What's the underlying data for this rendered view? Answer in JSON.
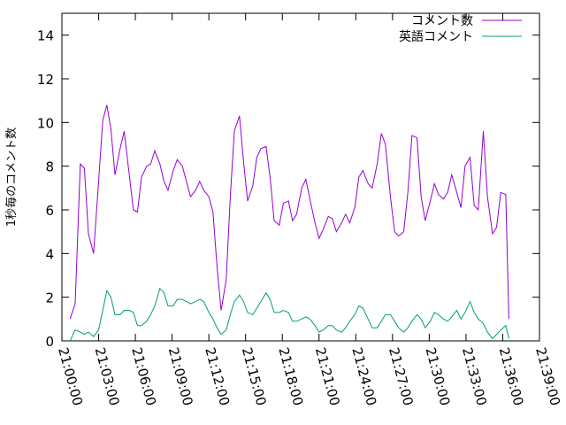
{
  "chart_data": {
    "type": "line",
    "ylabel": "1秒毎のコメント数",
    "xlabel": "",
    "ylim": [
      0,
      15
    ],
    "yticks": [
      0,
      2,
      4,
      6,
      8,
      10,
      12,
      14
    ],
    "xticks": [
      "21:00:00",
      "21:03:00",
      "21:06:00",
      "21:09:00",
      "21:12:00",
      "21:15:00",
      "21:18:00",
      "21:21:00",
      "21:24:00",
      "21:27:00",
      "21:30:00",
      "21:33:00",
      "21:36:00",
      "21:39:00"
    ],
    "grid": false,
    "legend_position": "top-right",
    "series": [
      {
        "name": "コメント数",
        "color": "#9400d3",
        "points": [
          [
            "21:00:40",
            1.0
          ],
          [
            "21:01:05",
            1.7
          ],
          [
            "21:01:30",
            8.1
          ],
          [
            "21:01:50",
            7.9
          ],
          [
            "21:02:10",
            4.9
          ],
          [
            "21:02:35",
            4.0
          ],
          [
            "21:03:00",
            7.3
          ],
          [
            "21:03:20",
            10.1
          ],
          [
            "21:03:40",
            10.8
          ],
          [
            "21:04:00",
            9.7
          ],
          [
            "21:04:20",
            7.6
          ],
          [
            "21:04:45",
            8.8
          ],
          [
            "21:05:05",
            9.6
          ],
          [
            "21:05:30",
            7.6
          ],
          [
            "21:05:50",
            6.0
          ],
          [
            "21:06:10",
            5.9
          ],
          [
            "21:06:30",
            7.5
          ],
          [
            "21:06:55",
            8.0
          ],
          [
            "21:07:15",
            8.1
          ],
          [
            "21:07:35",
            8.7
          ],
          [
            "21:08:00",
            8.1
          ],
          [
            "21:08:20",
            7.3
          ],
          [
            "21:08:40",
            6.9
          ],
          [
            "21:09:05",
            7.8
          ],
          [
            "21:09:25",
            8.3
          ],
          [
            "21:09:50",
            8.0
          ],
          [
            "21:10:10",
            7.3
          ],
          [
            "21:10:30",
            6.6
          ],
          [
            "21:10:55",
            6.9
          ],
          [
            "21:11:15",
            7.3
          ],
          [
            "21:11:35",
            6.9
          ],
          [
            "21:12:00",
            6.6
          ],
          [
            "21:12:20",
            5.9
          ],
          [
            "21:12:40",
            3.4
          ],
          [
            "21:13:00",
            1.4
          ],
          [
            "21:13:25",
            2.8
          ],
          [
            "21:13:45",
            6.6
          ],
          [
            "21:14:05",
            9.6
          ],
          [
            "21:14:30",
            10.3
          ],
          [
            "21:14:50",
            8.2
          ],
          [
            "21:15:10",
            6.4
          ],
          [
            "21:15:35",
            7.1
          ],
          [
            "21:15:55",
            8.4
          ],
          [
            "21:16:15",
            8.8
          ],
          [
            "21:16:40",
            8.9
          ],
          [
            "21:17:00",
            7.5
          ],
          [
            "21:17:20",
            5.5
          ],
          [
            "21:17:45",
            5.3
          ],
          [
            "21:18:05",
            6.3
          ],
          [
            "21:18:30",
            6.4
          ],
          [
            "21:18:50",
            5.5
          ],
          [
            "21:19:10",
            5.8
          ],
          [
            "21:19:35",
            7.0
          ],
          [
            "21:19:55",
            7.4
          ],
          [
            "21:20:15",
            6.5
          ],
          [
            "21:20:40",
            5.4
          ],
          [
            "21:21:00",
            4.7
          ],
          [
            "21:21:20",
            5.1
          ],
          [
            "21:21:45",
            5.7
          ],
          [
            "21:22:05",
            5.6
          ],
          [
            "21:22:25",
            5.0
          ],
          [
            "21:22:50",
            5.4
          ],
          [
            "21:23:10",
            5.8
          ],
          [
            "21:23:30",
            5.4
          ],
          [
            "21:23:55",
            6.1
          ],
          [
            "21:24:15",
            7.5
          ],
          [
            "21:24:35",
            7.8
          ],
          [
            "21:25:00",
            7.2
          ],
          [
            "21:25:20",
            7.0
          ],
          [
            "21:25:45",
            8.1
          ],
          [
            "21:26:05",
            9.5
          ],
          [
            "21:26:25",
            9.0
          ],
          [
            "21:26:50",
            6.6
          ],
          [
            "21:27:10",
            5.0
          ],
          [
            "21:27:30",
            4.8
          ],
          [
            "21:27:55",
            5.0
          ],
          [
            "21:28:15",
            6.8
          ],
          [
            "21:28:35",
            9.4
          ],
          [
            "21:29:00",
            9.3
          ],
          [
            "21:29:20",
            6.6
          ],
          [
            "21:29:40",
            5.5
          ],
          [
            "21:30:05",
            6.4
          ],
          [
            "21:30:25",
            7.2
          ],
          [
            "21:30:45",
            6.7
          ],
          [
            "21:31:10",
            6.5
          ],
          [
            "21:31:30",
            6.8
          ],
          [
            "21:31:50",
            7.6
          ],
          [
            "21:32:15",
            6.8
          ],
          [
            "21:32:35",
            6.1
          ],
          [
            "21:32:55",
            8.0
          ],
          [
            "21:33:20",
            8.4
          ],
          [
            "21:33:40",
            6.2
          ],
          [
            "21:34:00",
            6.0
          ],
          [
            "21:34:25",
            9.6
          ],
          [
            "21:34:45",
            6.6
          ],
          [
            "21:35:10",
            4.9
          ],
          [
            "21:35:30",
            5.2
          ],
          [
            "21:35:50",
            6.8
          ],
          [
            "21:36:15",
            6.7
          ],
          [
            "21:36:30",
            1.0
          ]
        ]
      },
      {
        "name": "英語コメント",
        "color": "#009e73",
        "points": [
          [
            "21:00:40",
            0.0
          ],
          [
            "21:01:05",
            0.5
          ],
          [
            "21:01:30",
            0.4
          ],
          [
            "21:01:50",
            0.3
          ],
          [
            "21:02:10",
            0.4
          ],
          [
            "21:02:35",
            0.2
          ],
          [
            "21:03:00",
            0.5
          ],
          [
            "21:03:20",
            1.4
          ],
          [
            "21:03:40",
            2.3
          ],
          [
            "21:04:00",
            2.0
          ],
          [
            "21:04:20",
            1.2
          ],
          [
            "21:04:45",
            1.2
          ],
          [
            "21:05:05",
            1.4
          ],
          [
            "21:05:30",
            1.4
          ],
          [
            "21:05:50",
            1.3
          ],
          [
            "21:06:10",
            0.7
          ],
          [
            "21:06:30",
            0.7
          ],
          [
            "21:06:55",
            0.9
          ],
          [
            "21:07:15",
            1.2
          ],
          [
            "21:07:35",
            1.6
          ],
          [
            "21:08:00",
            2.4
          ],
          [
            "21:08:20",
            2.2
          ],
          [
            "21:08:40",
            1.6
          ],
          [
            "21:09:05",
            1.6
          ],
          [
            "21:09:25",
            1.9
          ],
          [
            "21:09:50",
            1.9
          ],
          [
            "21:10:10",
            1.8
          ],
          [
            "21:10:30",
            1.7
          ],
          [
            "21:10:55",
            1.8
          ],
          [
            "21:11:15",
            1.9
          ],
          [
            "21:11:35",
            1.8
          ],
          [
            "21:12:00",
            1.3
          ],
          [
            "21:12:20",
            1.0
          ],
          [
            "21:12:40",
            0.6
          ],
          [
            "21:13:00",
            0.3
          ],
          [
            "21:13:25",
            0.5
          ],
          [
            "21:13:45",
            1.2
          ],
          [
            "21:14:05",
            1.8
          ],
          [
            "21:14:30",
            2.1
          ],
          [
            "21:14:50",
            1.8
          ],
          [
            "21:15:10",
            1.3
          ],
          [
            "21:15:35",
            1.2
          ],
          [
            "21:15:55",
            1.5
          ],
          [
            "21:16:15",
            1.8
          ],
          [
            "21:16:40",
            2.2
          ],
          [
            "21:17:00",
            1.9
          ],
          [
            "21:17:20",
            1.3
          ],
          [
            "21:17:45",
            1.3
          ],
          [
            "21:18:05",
            1.4
          ],
          [
            "21:18:30",
            1.3
          ],
          [
            "21:18:50",
            0.9
          ],
          [
            "21:19:10",
            0.9
          ],
          [
            "21:19:35",
            1.0
          ],
          [
            "21:19:55",
            1.1
          ],
          [
            "21:20:15",
            1.0
          ],
          [
            "21:20:40",
            0.7
          ],
          [
            "21:21:00",
            0.4
          ],
          [
            "21:21:20",
            0.5
          ],
          [
            "21:21:45",
            0.7
          ],
          [
            "21:22:05",
            0.7
          ],
          [
            "21:22:25",
            0.5
          ],
          [
            "21:22:50",
            0.4
          ],
          [
            "21:23:10",
            0.6
          ],
          [
            "21:23:30",
            0.9
          ],
          [
            "21:23:55",
            1.2
          ],
          [
            "21:24:15",
            1.6
          ],
          [
            "21:24:35",
            1.5
          ],
          [
            "21:25:00",
            1.0
          ],
          [
            "21:25:20",
            0.6
          ],
          [
            "21:25:45",
            0.6
          ],
          [
            "21:26:05",
            0.9
          ],
          [
            "21:26:25",
            1.2
          ],
          [
            "21:26:50",
            1.2
          ],
          [
            "21:27:10",
            0.9
          ],
          [
            "21:27:30",
            0.6
          ],
          [
            "21:27:55",
            0.4
          ],
          [
            "21:28:15",
            0.6
          ],
          [
            "21:28:35",
            0.9
          ],
          [
            "21:29:00",
            1.2
          ],
          [
            "21:29:20",
            1.0
          ],
          [
            "21:29:40",
            0.6
          ],
          [
            "21:30:05",
            0.9
          ],
          [
            "21:30:25",
            1.3
          ],
          [
            "21:30:45",
            1.2
          ],
          [
            "21:31:10",
            1.0
          ],
          [
            "21:31:30",
            0.9
          ],
          [
            "21:31:50",
            1.1
          ],
          [
            "21:32:15",
            1.4
          ],
          [
            "21:32:35",
            1.0
          ],
          [
            "21:32:55",
            1.3
          ],
          [
            "21:33:20",
            1.8
          ],
          [
            "21:33:40",
            1.3
          ],
          [
            "21:34:00",
            1.0
          ],
          [
            "21:34:25",
            0.8
          ],
          [
            "21:34:45",
            0.4
          ],
          [
            "21:35:10",
            0.1
          ],
          [
            "21:35:30",
            0.3
          ],
          [
            "21:35:50",
            0.5
          ],
          [
            "21:36:15",
            0.7
          ],
          [
            "21:36:30",
            0.1
          ]
        ]
      }
    ]
  }
}
